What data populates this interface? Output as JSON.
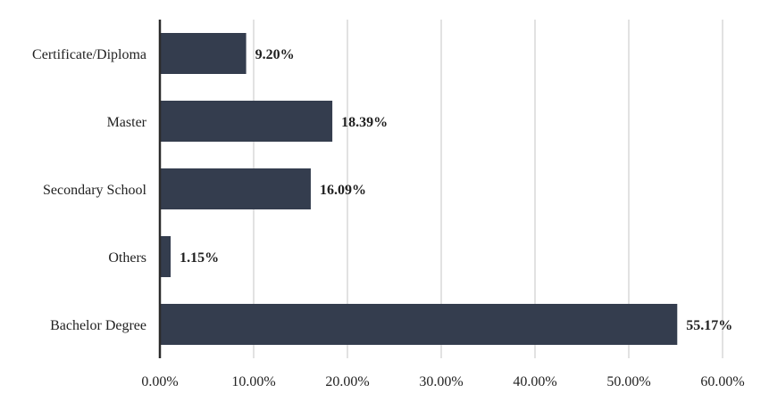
{
  "chart_data": {
    "type": "bar",
    "orientation": "horizontal",
    "title": "",
    "xlabel": "",
    "ylabel": "",
    "categories": [
      "Certificate/Diploma",
      "Master",
      "Secondary School",
      "Others",
      "Bachelor Degree"
    ],
    "values": [
      9.2,
      18.39,
      16.09,
      1.15,
      55.17
    ],
    "value_labels": [
      "9.20%",
      "18.39%",
      "16.09%",
      "1.15%",
      "55.17%"
    ],
    "xlim": [
      0,
      60
    ],
    "xticks": [
      0,
      10,
      20,
      30,
      40,
      50,
      60
    ],
    "xtick_labels": [
      "0.00%",
      "10.00%",
      "20.00%",
      "30.00%",
      "40.00%",
      "50.00%",
      "60.00%"
    ],
    "grid": "vertical",
    "legend": "none",
    "bar_color": "#343d4e"
  }
}
